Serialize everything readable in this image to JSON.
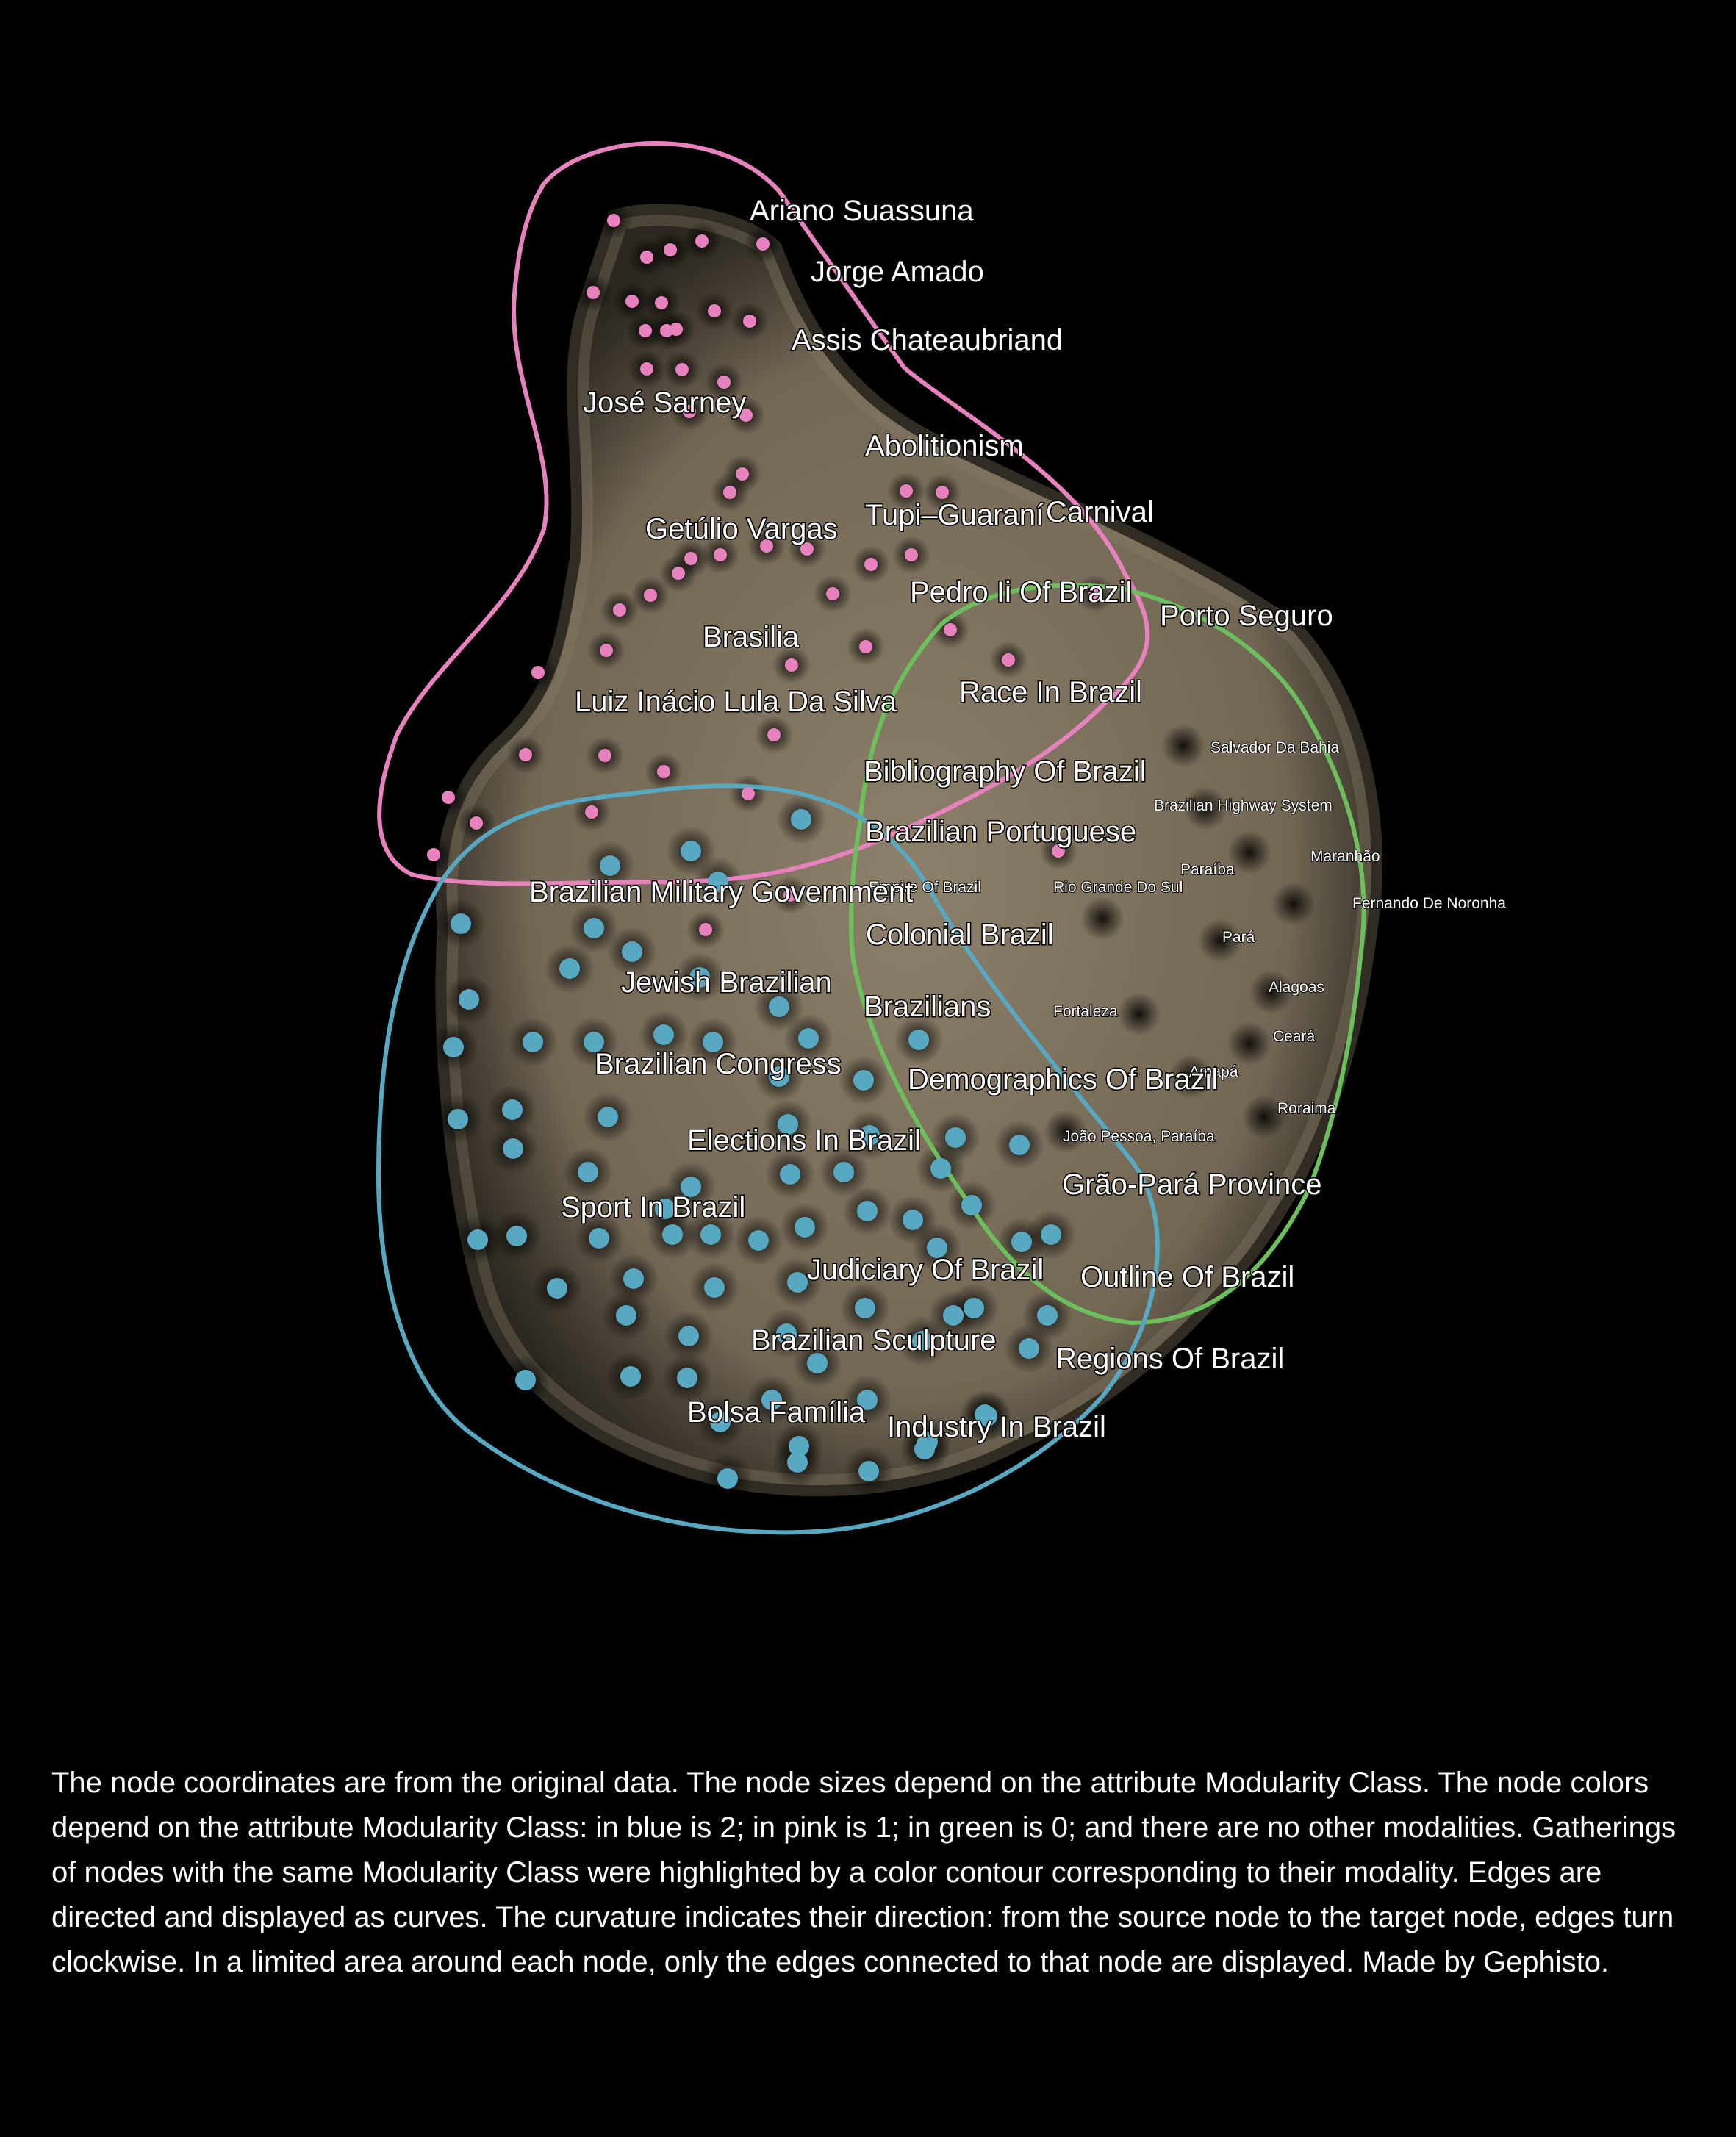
{
  "colors": {
    "background": "#000000",
    "edges": "#8a7d68",
    "modularity_2_blue": "#58a8c1",
    "modularity_1_pink": "#e882be",
    "modularity_0_green": "#6cbf5c",
    "label": "#ffffff"
  },
  "graph": {
    "labels": [
      {
        "text": "Ariano Suassuna",
        "group": 1
      },
      {
        "text": "Jorge Amado",
        "group": 1
      },
      {
        "text": "Assis Chateaubriand",
        "group": 1
      },
      {
        "text": "José Sarney",
        "group": 1
      },
      {
        "text": "Abolitionism",
        "group": 1
      },
      {
        "text": "Tupi–Guaraní",
        "group": 1
      },
      {
        "text": "Carnival",
        "group": 1
      },
      {
        "text": "Getúlio Vargas",
        "group": 1
      },
      {
        "text": "Pedro Ii Of Brazil",
        "group": 1
      },
      {
        "text": "Porto Seguro",
        "group": 1
      },
      {
        "text": "Brasilia",
        "group": 1
      },
      {
        "text": "Race In Brazil",
        "group": 1
      },
      {
        "text": "Luiz Inácio Lula Da Silva",
        "group": 1
      },
      {
        "text": "Bibliography Of Brazil",
        "group": 1
      },
      {
        "text": "Brazilian Portuguese",
        "group": 1
      },
      {
        "text": "Empire Of Brazil",
        "group": 1
      },
      {
        "text": "Brazilian Military Government",
        "group": 1
      },
      {
        "text": "Salvador Da Bahia",
        "group": 0
      },
      {
        "text": "Brazilian Highway System",
        "group": 0
      },
      {
        "text": "Maranhão",
        "group": 0
      },
      {
        "text": "Paraíba",
        "group": 0
      },
      {
        "text": "Rio Grande Do Sul",
        "group": 0
      },
      {
        "text": "Fernando De Noronha",
        "group": 0
      },
      {
        "text": "Pará",
        "group": 0
      },
      {
        "text": "Alagoas",
        "group": 0
      },
      {
        "text": "Fortaleza",
        "group": 0
      },
      {
        "text": "Ceará",
        "group": 0
      },
      {
        "text": "Amapá",
        "group": 0
      },
      {
        "text": "Roraima",
        "group": 0
      },
      {
        "text": "João Pessoa, Paraíba",
        "group": 0
      },
      {
        "text": "Colonial Brazil",
        "group": 2
      },
      {
        "text": "Jewish Brazilian",
        "group": 2
      },
      {
        "text": "Brazilians",
        "group": 2
      },
      {
        "text": "Brazilian Congress",
        "group": 2
      },
      {
        "text": "Demographics Of Brazil",
        "group": 2
      },
      {
        "text": "Elections In Brazil",
        "group": 2
      },
      {
        "text": "Grão-Pará Province",
        "group": 2
      },
      {
        "text": "Sport In Brazil",
        "group": 2
      },
      {
        "text": "Judiciary Of Brazil",
        "group": 2
      },
      {
        "text": "Outline Of Brazil",
        "group": 2
      },
      {
        "text": "Brazilian Sculpture",
        "group": 2
      },
      {
        "text": "Regions Of Brazil",
        "group": 2
      },
      {
        "text": "Bolsa Família",
        "group": 2
      },
      {
        "text": "Industry In Brazil",
        "group": 2
      }
    ]
  },
  "caption": "The node coordinates are from the original data. The node sizes depend on the attribute Modularity Class. The node colors depend on the attribute Modularity Class: in blue is 2; in pink is 1; in green is 0; and there are no other modalities. Gatherings of nodes with the same Modularity Class were highlighted by a color contour corresponding to their modality. Edges are directed and displayed as curves. The curvature indicates their direction: from the source node to the target node, edges turn clockwise. In a limited area around each node, only the edges connected to that node are displayed.  Made by Gephisto."
}
